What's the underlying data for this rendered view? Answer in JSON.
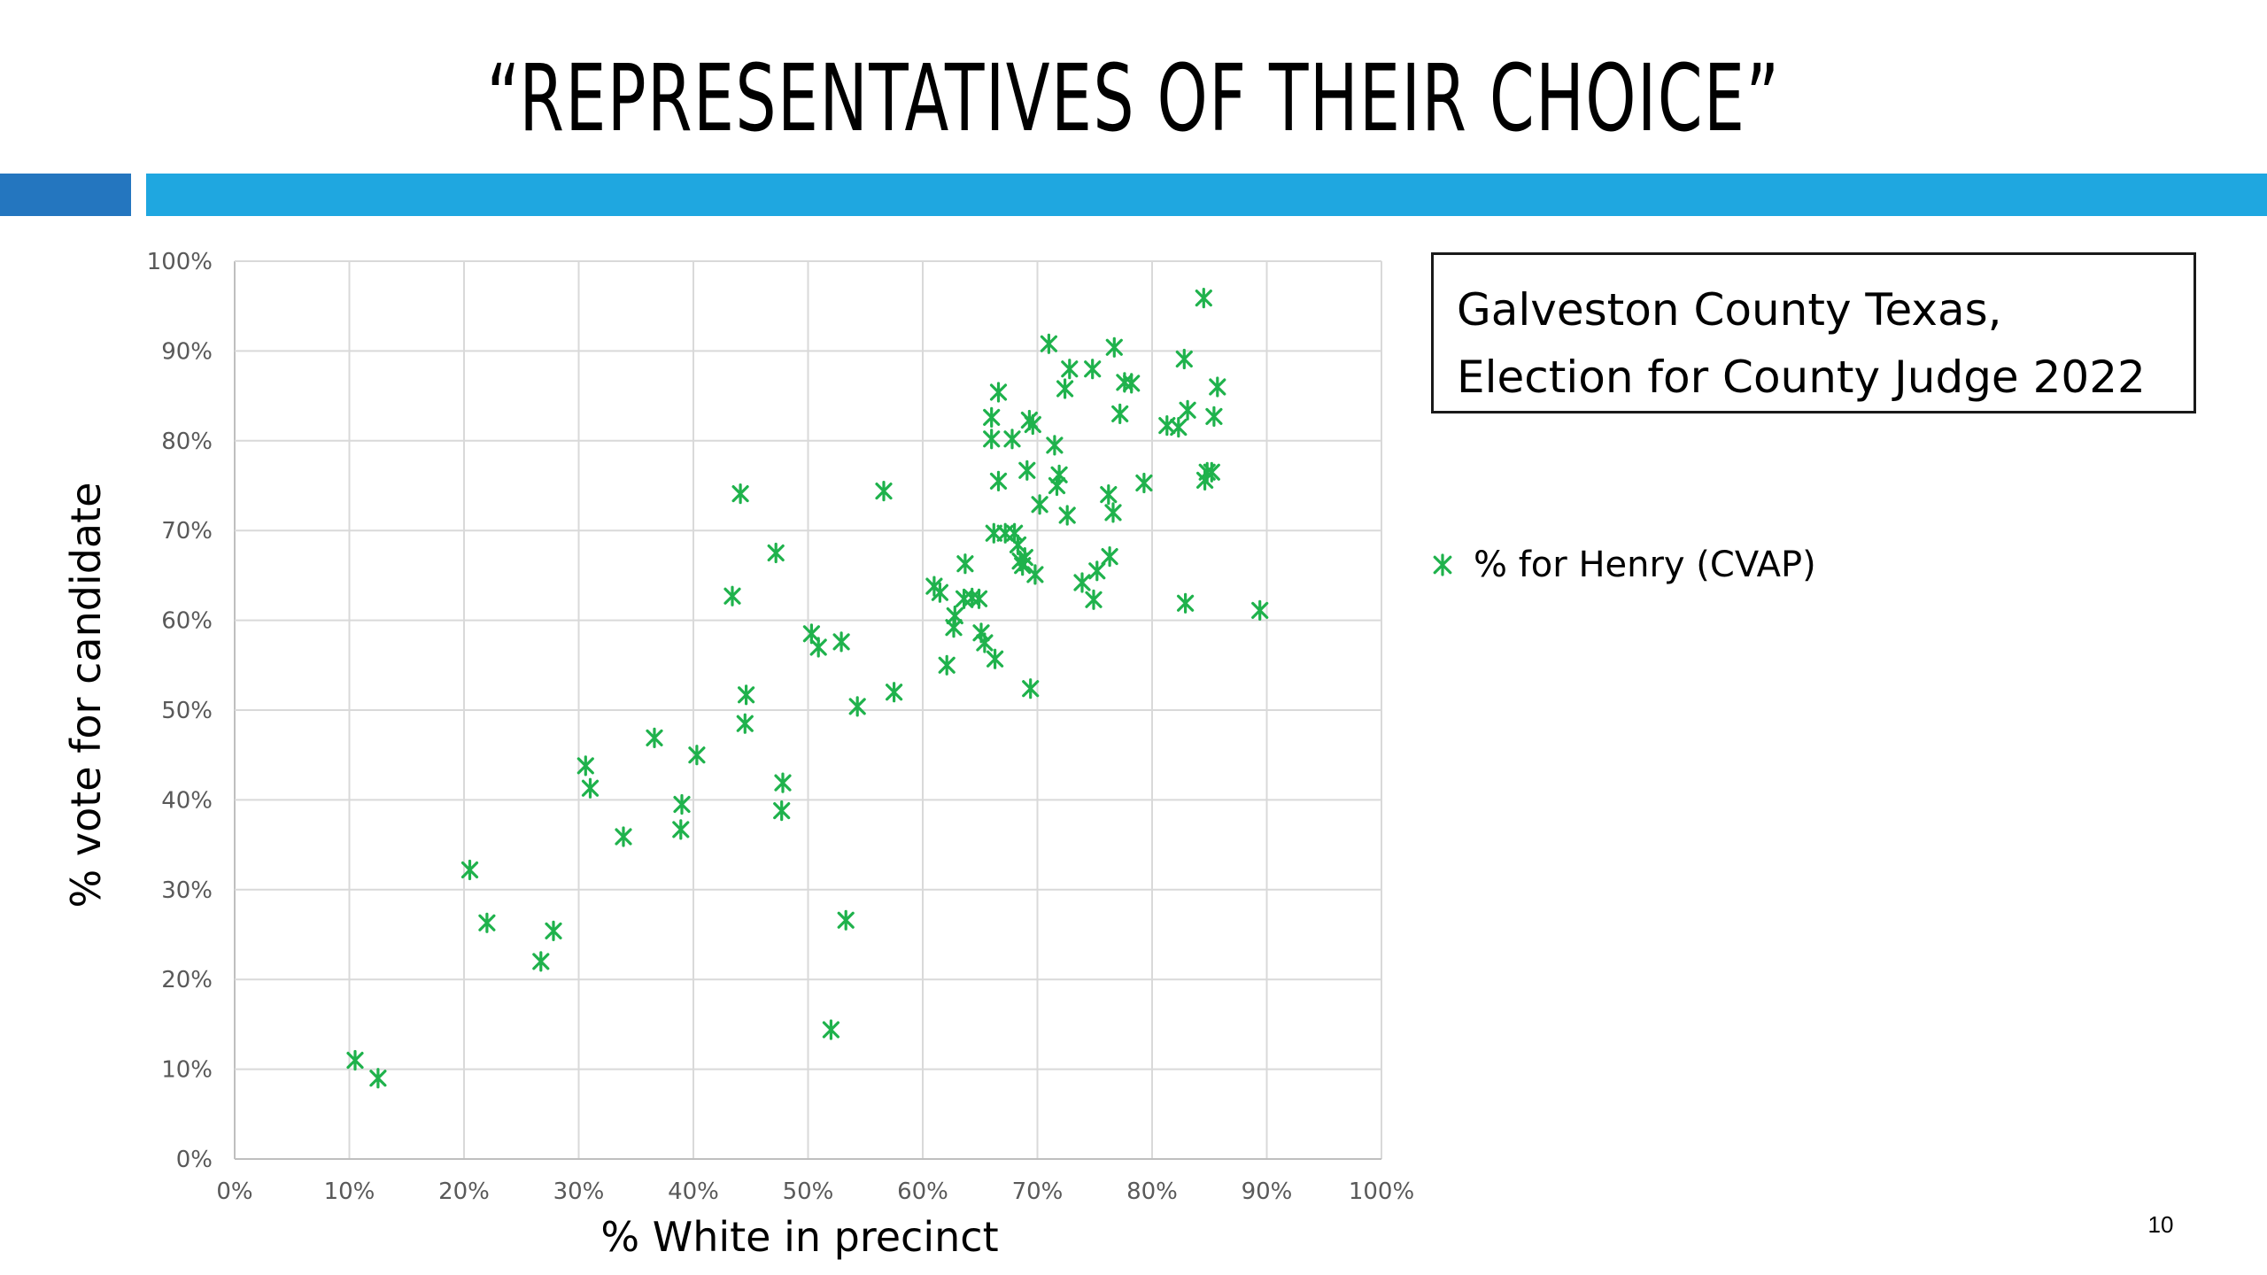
{
  "slide": {
    "title": "“REPRESENTATIVES OF THEIR CHOICE”",
    "info_box": {
      "line1": "Galveston County Texas,",
      "line2": "Election for County Judge 2022"
    },
    "slide_number": "10",
    "accent_colors": {
      "left_bar": "#2476bf",
      "right_bar": "#1fa7e0"
    }
  },
  "chart_data": {
    "type": "scatter",
    "xlabel": "% White in precinct",
    "ylabel": "% vote for candidate",
    "xlim": [
      0,
      100
    ],
    "ylim": [
      0,
      100
    ],
    "x_ticks": [
      "0%",
      "10%",
      "20%",
      "30%",
      "40%",
      "50%",
      "60%",
      "70%",
      "80%",
      "90%",
      "100%"
    ],
    "y_ticks": [
      "0%",
      "10%",
      "20%",
      "30%",
      "40%",
      "50%",
      "60%",
      "70%",
      "80%",
      "90%",
      "100%"
    ],
    "grid": true,
    "legend_position": "right",
    "marker": "asterisk",
    "series": [
      {
        "name": "% for Henry (CVAP)",
        "color": "#1fb24c",
        "points": [
          [
            10.5,
            11.0
          ],
          [
            12.5,
            9.0
          ],
          [
            20.5,
            32.2
          ],
          [
            22.0,
            26.3
          ],
          [
            26.7,
            22.0
          ],
          [
            27.8,
            25.4
          ],
          [
            30.6,
            43.8
          ],
          [
            31.0,
            41.3
          ],
          [
            33.9,
            35.9
          ],
          [
            36.6,
            46.9
          ],
          [
            38.9,
            36.7
          ],
          [
            39.0,
            39.5
          ],
          [
            40.3,
            45.0
          ],
          [
            43.4,
            62.7
          ],
          [
            44.1,
            74.1
          ],
          [
            44.5,
            48.5
          ],
          [
            44.6,
            51.7
          ],
          [
            47.2,
            67.5
          ],
          [
            47.7,
            38.8
          ],
          [
            47.8,
            41.9
          ],
          [
            50.3,
            58.5
          ],
          [
            50.9,
            57.0
          ],
          [
            52.0,
            14.4
          ],
          [
            52.9,
            57.6
          ],
          [
            53.3,
            26.6
          ],
          [
            54.3,
            50.4
          ],
          [
            56.6,
            74.4
          ],
          [
            57.5,
            52.0
          ],
          [
            61.0,
            63.8
          ],
          [
            61.5,
            63.1
          ],
          [
            62.1,
            55.0
          ],
          [
            62.7,
            59.2
          ],
          [
            62.8,
            60.5
          ],
          [
            63.6,
            62.4
          ],
          [
            63.7,
            66.3
          ],
          [
            64.3,
            62.5
          ],
          [
            64.9,
            62.4
          ],
          [
            65.1,
            58.6
          ],
          [
            65.4,
            57.5
          ],
          [
            66.0,
            80.2
          ],
          [
            66.0,
            82.6
          ],
          [
            66.2,
            69.7
          ],
          [
            66.3,
            55.7
          ],
          [
            66.6,
            75.5
          ],
          [
            66.6,
            85.4
          ],
          [
            67.2,
            69.7
          ],
          [
            67.8,
            80.2
          ],
          [
            68.0,
            69.7
          ],
          [
            68.3,
            68.4
          ],
          [
            68.5,
            66.6
          ],
          [
            68.7,
            66.1
          ],
          [
            68.9,
            67.0
          ],
          [
            69.1,
            76.7
          ],
          [
            69.3,
            82.3
          ],
          [
            69.4,
            52.4
          ],
          [
            69.6,
            81.8
          ],
          [
            69.8,
            65.1
          ],
          [
            70.2,
            72.9
          ],
          [
            71.0,
            90.8
          ],
          [
            71.5,
            79.5
          ],
          [
            71.7,
            75.0
          ],
          [
            71.9,
            76.2
          ],
          [
            72.4,
            85.8
          ],
          [
            72.6,
            71.7
          ],
          [
            72.8,
            88.0
          ],
          [
            73.9,
            64.2
          ],
          [
            74.8,
            88.0
          ],
          [
            74.9,
            62.3
          ],
          [
            75.2,
            65.5
          ],
          [
            76.2,
            74.0
          ],
          [
            76.3,
            67.1
          ],
          [
            76.6,
            72.0
          ],
          [
            76.7,
            90.4
          ],
          [
            77.2,
            83.0
          ],
          [
            77.6,
            86.5
          ],
          [
            78.2,
            86.4
          ],
          [
            79.3,
            75.3
          ],
          [
            81.3,
            81.7
          ],
          [
            82.3,
            81.5
          ],
          [
            82.8,
            89.1
          ],
          [
            82.9,
            61.9
          ],
          [
            83.1,
            83.4
          ],
          [
            84.5,
            95.9
          ],
          [
            84.6,
            75.6
          ],
          [
            84.8,
            76.5
          ],
          [
            85.2,
            76.5
          ],
          [
            85.4,
            82.7
          ],
          [
            85.7,
            86.0
          ],
          [
            89.4,
            61.1
          ]
        ]
      }
    ]
  }
}
